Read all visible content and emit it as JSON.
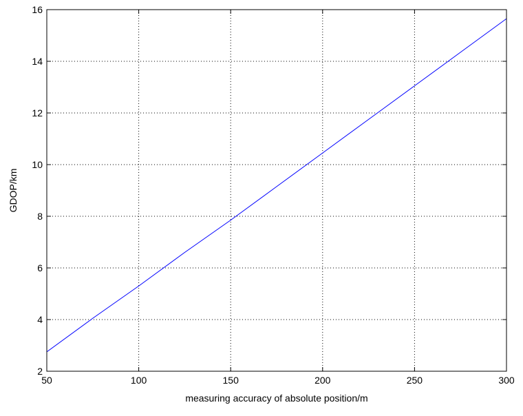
{
  "chart_data": {
    "type": "line",
    "title": "",
    "xlabel": "measuring accuracy of absolute position/m",
    "ylabel": "GDOP/km",
    "xlim": [
      50,
      300
    ],
    "ylim": [
      2,
      16
    ],
    "xticks": [
      50,
      100,
      150,
      200,
      250,
      300
    ],
    "yticks": [
      2,
      4,
      6,
      8,
      10,
      12,
      14,
      16
    ],
    "grid": true,
    "legend": "none",
    "series": [
      {
        "color": "#0000ff",
        "x": [
          50,
          75,
          100,
          125,
          150,
          175,
          200,
          225,
          250,
          275,
          300
        ],
        "y": [
          2.75,
          4.05,
          5.3,
          6.6,
          7.85,
          9.15,
          10.45,
          11.75,
          13.05,
          14.35,
          15.65
        ]
      }
    ]
  }
}
